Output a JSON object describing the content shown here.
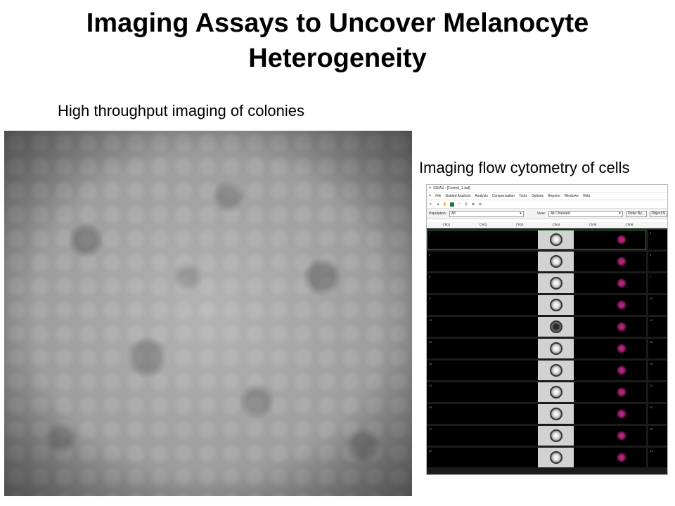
{
  "slide": {
    "title_line1": "Imaging Assays to Uncover Melanocyte",
    "title_line2": "Heterogeneity",
    "left_caption": "High throughput imaging of colonies",
    "right_caption": "Imaging flow cytometry of cells"
  },
  "ideas_window": {
    "app_title": "IDEAS - [Control_1.daf]",
    "menu": [
      "File",
      "Guided Analysis",
      "Analysis",
      "Compensation",
      "Tools",
      "Options",
      "Reports",
      "Windows",
      "Help"
    ],
    "toolbar_icons": [
      "pointer-icon",
      "color-icon",
      "hand-icon",
      "image-icon",
      "graph-icon",
      "zoom-icon",
      "zoom-in-icon",
      "zoom-out-icon"
    ],
    "population_label": "Population:",
    "population_value": "All",
    "view_label": "View:",
    "view_value": "All Channels",
    "order_button": "Order By...",
    "object_button": "Object N",
    "channels": [
      "Ch01",
      "Ch02",
      "Ch03",
      "Ch04",
      "Ch05",
      "Ch06"
    ],
    "rows": [
      {
        "id": "1",
        "side": "3",
        "dark": false
      },
      {
        "id": "2",
        "side": "4",
        "dark": false
      },
      {
        "id": "6",
        "side": "7",
        "dark": false
      },
      {
        "id": "9",
        "side": "10",
        "dark": false
      },
      {
        "id": "12",
        "side": "13",
        "dark": true
      },
      {
        "id": "15",
        "side": "16",
        "dark": false
      },
      {
        "id": "16",
        "side": "19",
        "dark": false
      },
      {
        "id": "21",
        "side": "22",
        "dark": false
      },
      {
        "id": "24",
        "side": "25",
        "dark": false
      },
      {
        "id": "27",
        "side": "28",
        "dark": false
      },
      {
        "id": "30",
        "side": "31",
        "dark": false
      }
    ]
  }
}
